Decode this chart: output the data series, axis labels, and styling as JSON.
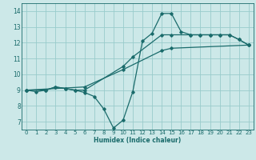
{
  "xlabel": "Humidex (Indice chaleur)",
  "background_color": "#cce8e8",
  "grid_color": "#99cccc",
  "line_color": "#1a6b6b",
  "xlim": [
    -0.5,
    23.5
  ],
  "ylim": [
    6.5,
    14.5
  ],
  "xticks": [
    0,
    1,
    2,
    3,
    4,
    5,
    6,
    7,
    8,
    9,
    10,
    11,
    12,
    13,
    14,
    15,
    16,
    17,
    18,
    19,
    20,
    21,
    22,
    23
  ],
  "yticks": [
    7,
    8,
    9,
    10,
    11,
    12,
    13,
    14
  ],
  "line1_x": [
    0,
    1,
    2,
    3,
    4,
    5,
    6,
    7,
    8,
    9,
    10,
    11,
    12,
    13,
    14,
    15,
    16,
    17,
    18,
    19,
    20,
    21,
    22,
    23
  ],
  "line1_y": [
    9.0,
    8.9,
    9.0,
    9.2,
    9.1,
    9.0,
    8.85,
    8.6,
    7.8,
    6.6,
    7.1,
    8.9,
    12.1,
    12.6,
    13.85,
    13.85,
    12.7,
    12.5,
    12.5,
    12.5,
    12.5,
    12.5,
    12.2,
    11.85
  ],
  "line2_x": [
    0,
    2,
    3,
    4,
    5,
    6,
    10,
    11,
    14,
    15,
    17,
    18,
    19,
    20,
    21,
    22,
    23
  ],
  "line2_y": [
    9.0,
    9.0,
    9.2,
    9.1,
    9.0,
    9.0,
    10.5,
    11.1,
    12.5,
    12.5,
    12.5,
    12.5,
    12.5,
    12.5,
    12.5,
    12.2,
    11.85
  ],
  "line3_x": [
    0,
    6,
    10,
    14,
    15,
    23
  ],
  "line3_y": [
    9.0,
    9.2,
    10.3,
    11.5,
    11.65,
    11.85
  ]
}
